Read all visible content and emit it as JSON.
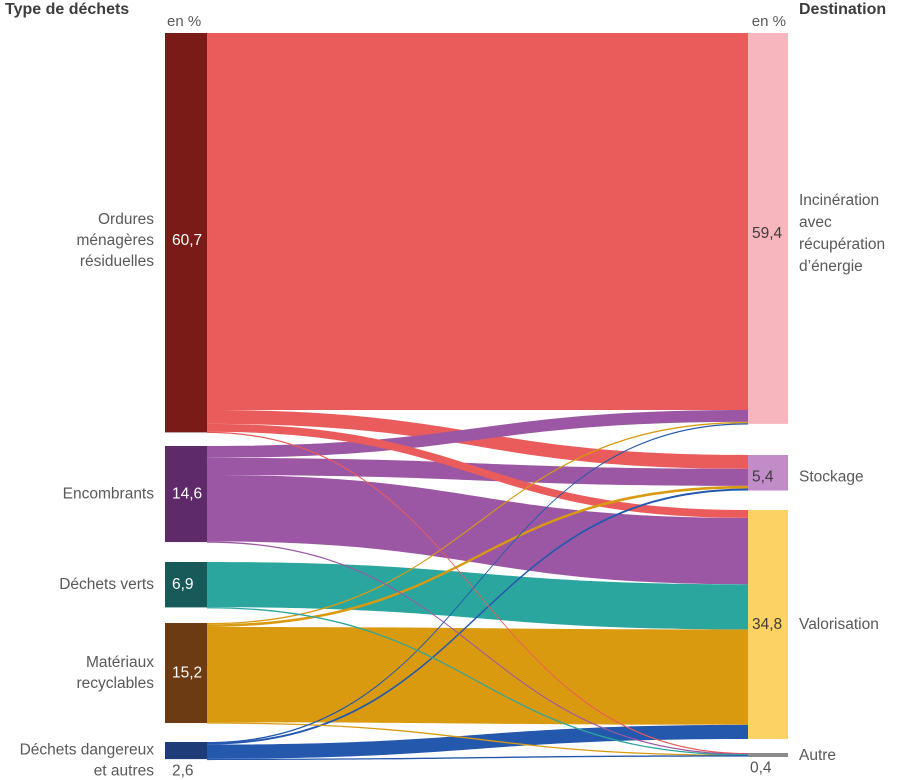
{
  "header": {
    "left_title": "Type de déchets",
    "right_title": "Destination",
    "unit_left": "en %",
    "unit_right": "en %"
  },
  "chart_data": {
    "type": "sankey",
    "unit": "%",
    "title_left": "Type de déchets",
    "title_right": "Destination",
    "sources": [
      {
        "id": "ordures-menageres",
        "label": "Ordures ménagères résiduelles",
        "label_lines": [
          "Ordures",
          "ménagères",
          "résiduelles"
        ],
        "value": 60.7,
        "value_text": "60,7",
        "node_color": "#7a1b18",
        "flow_color": "#ea5c5b",
        "value_label": "inside"
      },
      {
        "id": "encombrants",
        "label": "Encombrants",
        "label_lines": [
          "Encombrants"
        ],
        "value": 14.6,
        "value_text": "14,6",
        "node_color": "#5f2a68",
        "flow_color": "#9c57a4",
        "value_label": "inside"
      },
      {
        "id": "dechets-verts",
        "label": "Déchets verts",
        "label_lines": [
          "Déchets verts"
        ],
        "value": 6.9,
        "value_text": "6,9",
        "node_color": "#175a59",
        "flow_color": "#2aa69e",
        "value_label": "inside"
      },
      {
        "id": "materiaux-recyclables",
        "label": "Matériaux recyclables",
        "label_lines": [
          "Matériaux",
          "recyclables"
        ],
        "value": 15.2,
        "value_text": "15,2",
        "node_color": "#6d3b13",
        "flow_color": "#d99a10",
        "value_label": "inside"
      },
      {
        "id": "dechets-dangereux",
        "label": "Déchets dangereux et autres",
        "label_lines": [
          "Déchets dangereux",
          "et autres"
        ],
        "value": 2.6,
        "value_text": "2,6",
        "node_color": "#1e3d78",
        "flow_color": "#2458ad",
        "value_label": "below"
      }
    ],
    "destinations": [
      {
        "id": "incineration",
        "label": "Incinération avec récupération d’énergie",
        "label_lines": [
          "Incinération",
          "avec",
          "récupération",
          "d’énergie"
        ],
        "value": 59.4,
        "value_text": "59,4",
        "color": "#f7b6bd",
        "value_label": "inside"
      },
      {
        "id": "stockage",
        "label": "Stockage",
        "label_lines": [
          "Stockage"
        ],
        "value": 5.4,
        "value_text": "5,4",
        "color": "#c18cc8",
        "value_label": "inside"
      },
      {
        "id": "valorisation",
        "label": "Valorisation",
        "label_lines": [
          "Valorisation"
        ],
        "value": 34.8,
        "value_text": "34,8",
        "color": "#fdd264",
        "value_label": "inside"
      },
      {
        "id": "autre",
        "label": "Autre",
        "label_lines": [
          "Autre"
        ],
        "value": 0.4,
        "value_text": "0,4",
        "color": "#8a8a8a",
        "value_label": "below"
      }
    ],
    "flows": [
      {
        "source": 0,
        "target": 0,
        "value": 57.3
      },
      {
        "source": 0,
        "target": 1,
        "value": 2.1
      },
      {
        "source": 0,
        "target": 2,
        "value": 1.2
      },
      {
        "source": 0,
        "target": 3,
        "value": 0.1
      },
      {
        "source": 1,
        "target": 0,
        "value": 1.8
      },
      {
        "source": 1,
        "target": 1,
        "value": 2.6
      },
      {
        "source": 1,
        "target": 2,
        "value": 10.1
      },
      {
        "source": 1,
        "target": 3,
        "value": 0.1
      },
      {
        "source": 2,
        "target": 2,
        "value": 6.85
      },
      {
        "source": 2,
        "target": 3,
        "value": 0.05
      },
      {
        "source": 3,
        "target": 0,
        "value": 0.2
      },
      {
        "source": 3,
        "target": 1,
        "value": 0.4
      },
      {
        "source": 3,
        "target": 2,
        "value": 14.5
      },
      {
        "source": 3,
        "target": 3,
        "value": 0.1
      },
      {
        "source": 4,
        "target": 0,
        "value": 0.1
      },
      {
        "source": 4,
        "target": 1,
        "value": 0.3
      },
      {
        "source": 4,
        "target": 2,
        "value": 2.15
      },
      {
        "source": 4,
        "target": 3,
        "value": 0.05
      }
    ],
    "style": {
      "label_color": "#595959",
      "header_color": "#3d3d3d",
      "value_inside_left_color": "#ffffff",
      "value_inside_right_color": "#3d3d3d",
      "value_below_color": "#555555"
    }
  }
}
